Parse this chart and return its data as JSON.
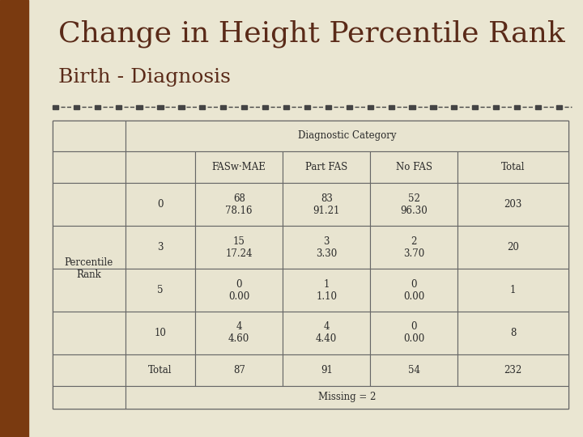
{
  "title_line1": "Change in Height Percentile Rank",
  "title_line2": "Birth - Diagnosis",
  "bg_color": "#eae6d2",
  "left_stripe_color": "#7a3a10",
  "title_color": "#5a2a18",
  "table_bg": "#e8e4d0",
  "table_border_color": "#666666",
  "header_span": "Diagnostic Category",
  "col_headers": [
    "FASw·MAE",
    "Part FAS",
    "No FAS",
    "Total"
  ],
  "row_headers": [
    "0",
    "3",
    "5",
    "10",
    "Total"
  ],
  "row_label": "Percentile\nRank",
  "data": [
    [
      "68\n78.16",
      "83\n91.21",
      "52\n96.30",
      "203"
    ],
    [
      "15\n17.24",
      "3\n3.30",
      "2\n3.70",
      "20"
    ],
    [
      "0\n0.00",
      "1\n1.10",
      "0\n0.00",
      "1"
    ],
    [
      "4\n4.60",
      "4\n4.40",
      "0\n0.00",
      "8"
    ],
    [
      "87",
      "91",
      "54",
      "232"
    ]
  ],
  "missing_text": "Missing = 2",
  "divider_color": "#444444",
  "font_family": "serif",
  "title1_fontsize": 26,
  "title2_fontsize": 18,
  "cell_fontsize": 8.5
}
